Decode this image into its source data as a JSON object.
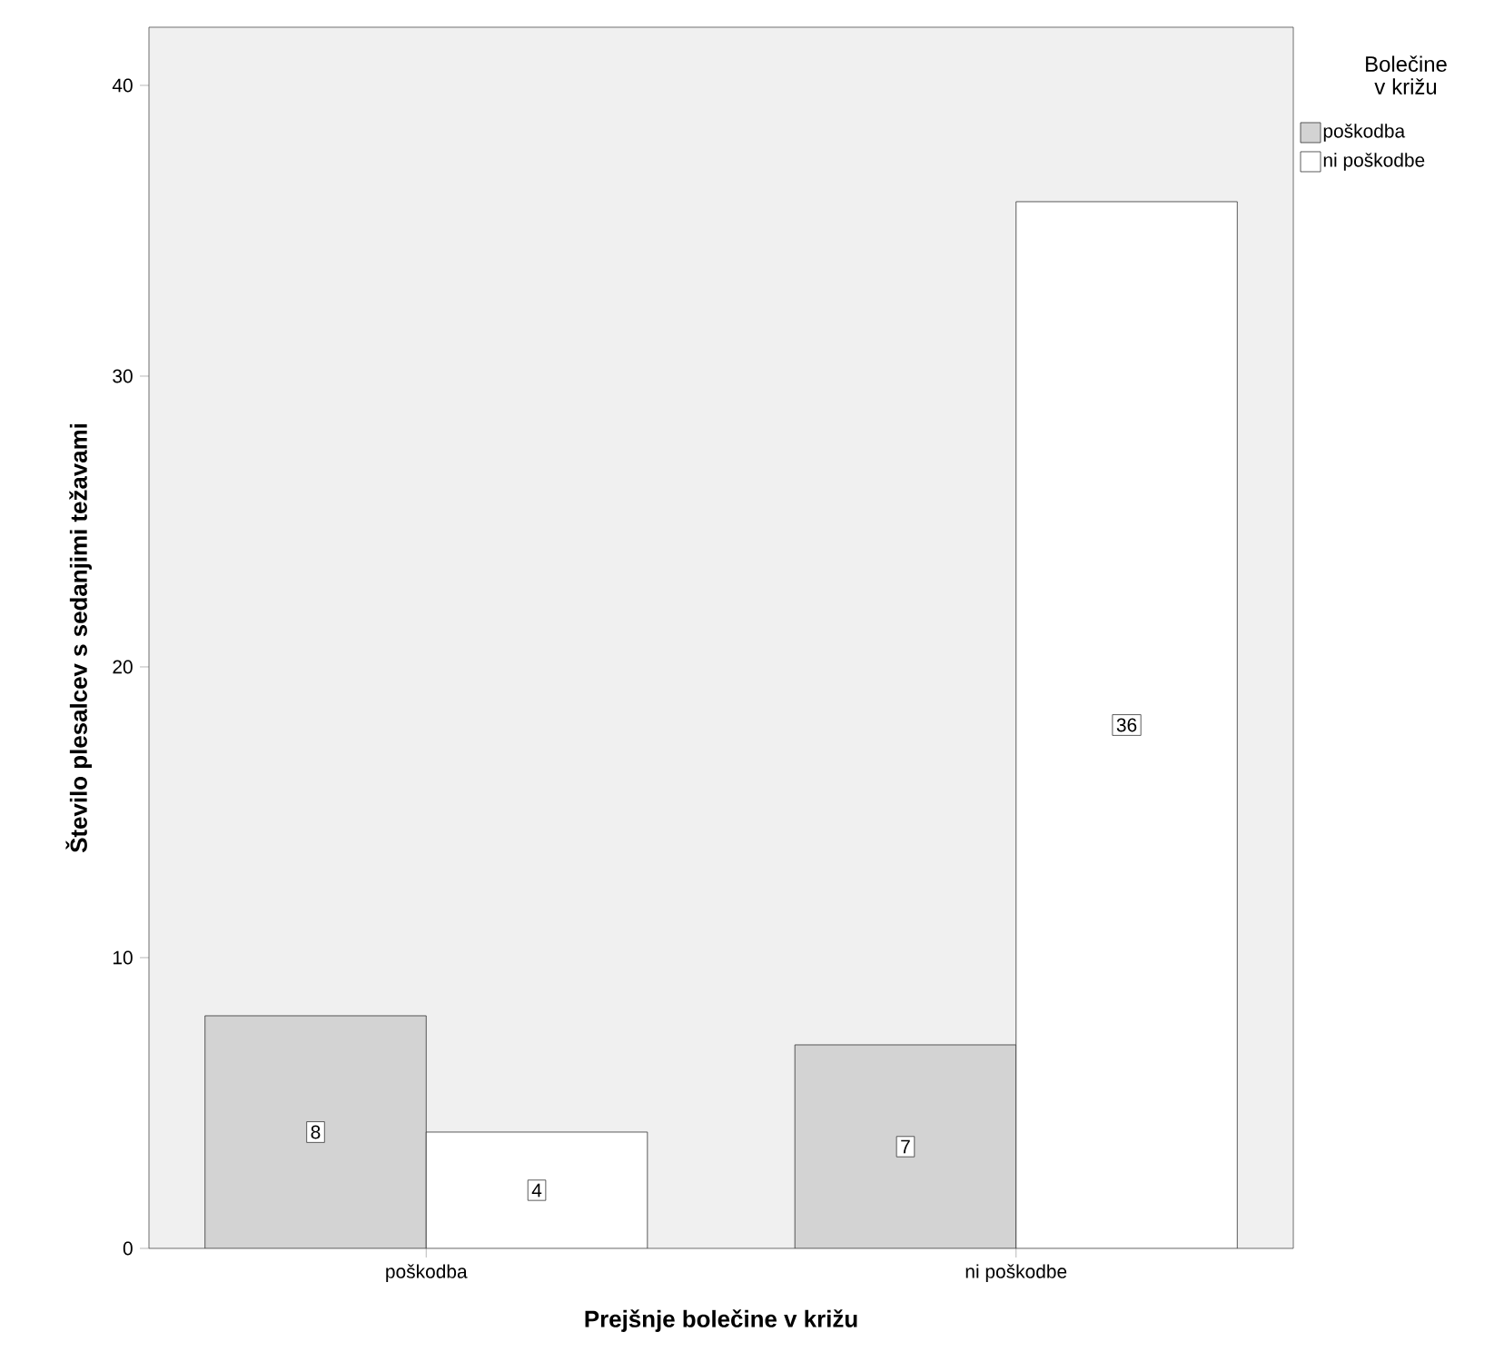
{
  "chart_data": {
    "type": "bar",
    "categories": [
      "poškodba",
      "ni poškodbe"
    ],
    "xlabel": "Prejšnje bolečine v križu",
    "ylabel": "Število plesalcev s sedanjimi težavami",
    "legend_title": "Bolečine v križu",
    "series": [
      {
        "name": "poškodba",
        "color": "#d3d3d3",
        "values": [
          8,
          7
        ]
      },
      {
        "name": "ni poškodbe",
        "color": "#ffffff",
        "values": [
          4,
          36
        ]
      }
    ],
    "ylim": [
      0,
      42
    ],
    "yticks": [
      0,
      10,
      20,
      30,
      40
    ],
    "data_labels": true,
    "legend": "top right",
    "grid": false
  }
}
